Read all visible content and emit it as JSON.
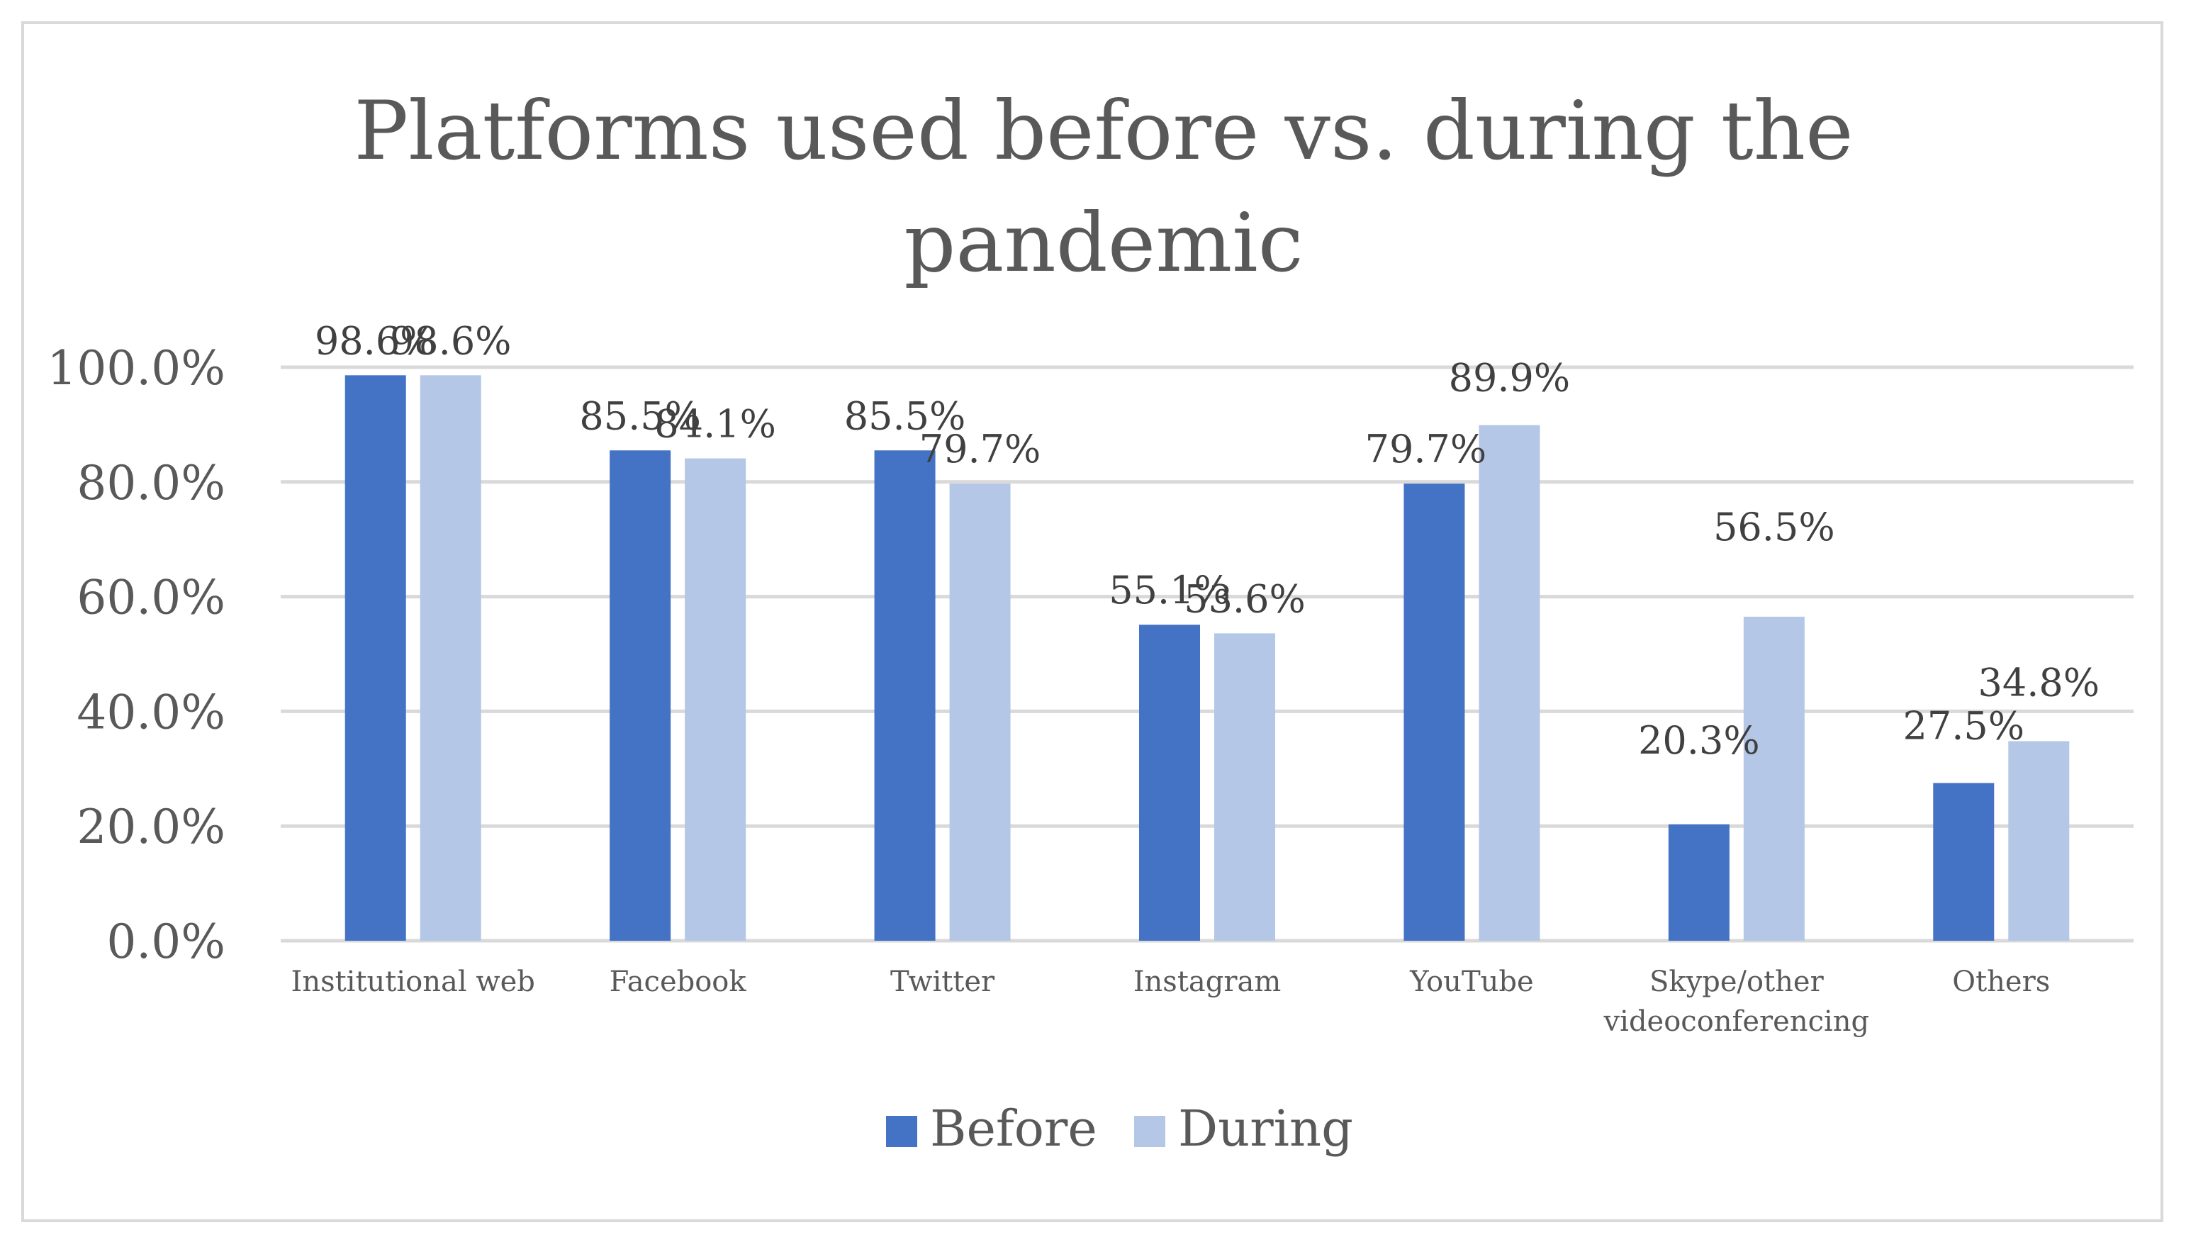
{
  "chart_data": {
    "type": "bar",
    "title_lines": [
      "Platforms used before vs. during the",
      "pandemic"
    ],
    "categories": [
      [
        "Institutional web"
      ],
      [
        "Facebook"
      ],
      [
        "Twitter"
      ],
      [
        "Instagram"
      ],
      [
        "YouTube"
      ],
      [
        "Skype/other",
        "videoconferencing"
      ],
      [
        "Others"
      ]
    ],
    "series": [
      {
        "name": "Before",
        "color": "#4472c4",
        "values": [
          98.6,
          85.5,
          85.5,
          55.1,
          79.7,
          20.3,
          27.5
        ],
        "labels": [
          "98.6%",
          "85.5%",
          "85.5%",
          "55.1%",
          "79.7%",
          "20.3%",
          "27.5%"
        ]
      },
      {
        "name": "During",
        "color": "#b4c7e7",
        "values": [
          98.6,
          84.1,
          79.7,
          53.6,
          89.9,
          56.5,
          34.8
        ],
        "labels": [
          "98.6%",
          "84.1%",
          "79.7%",
          "53.6%",
          "89.9%",
          "56.5%",
          "34.8%"
        ]
      }
    ],
    "ylim": [
      0,
      100
    ],
    "yticks": [
      0,
      20,
      40,
      60,
      80,
      100
    ],
    "ytick_labels": [
      "0.0%",
      "20.0%",
      "40.0%",
      "60.0%",
      "80.0%",
      "100.0%"
    ],
    "grid": true,
    "legend_position": "bottom",
    "gridline_color": "#d9d9d9",
    "text_color": "#595959",
    "label_color": "#404040"
  }
}
